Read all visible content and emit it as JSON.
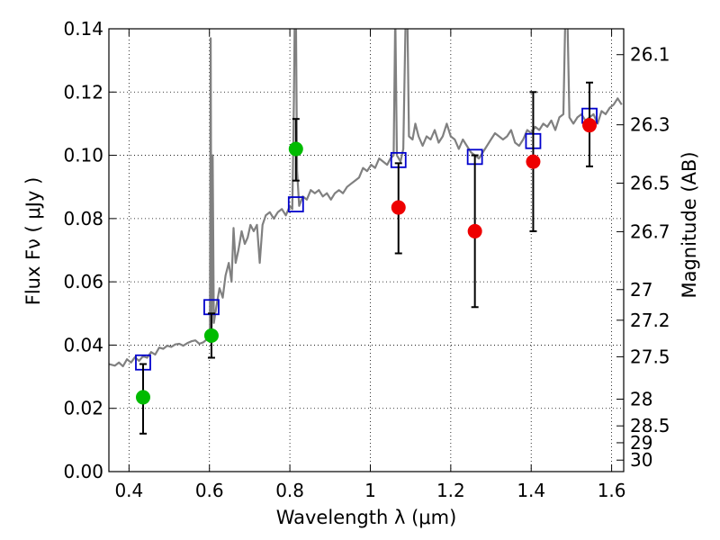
{
  "chart_data": {
    "type": "scatter",
    "title": "",
    "xlabel": "Wavelength  λ (μm)",
    "ylabel": "Flux  Fν  ( μJy )",
    "ylabel_right": "Magnitude (AB)",
    "xlim": [
      0.35,
      1.63
    ],
    "ylim": [
      0.0,
      0.14
    ],
    "grid": true,
    "x_ticks": [
      0.4,
      0.6,
      0.8,
      1.0,
      1.2,
      1.4,
      1.6
    ],
    "x_tick_labels": [
      "0.4",
      "0.6",
      "0.8",
      "1",
      "1.2",
      "1.4",
      "1.6"
    ],
    "y_ticks": [
      0.0,
      0.02,
      0.04,
      0.06,
      0.08,
      0.1,
      0.12,
      0.14
    ],
    "y_tick_labels": [
      "0.00",
      "0.02",
      "0.04",
      "0.06",
      "0.08",
      "0.10",
      "0.12",
      "0.14"
    ],
    "mag_ticks": [
      {
        "mag": 26.1,
        "label": "26.1"
      },
      {
        "mag": 26.3,
        "label": "26.3"
      },
      {
        "mag": 26.5,
        "label": "26.5"
      },
      {
        "mag": 26.7,
        "label": "26.7"
      },
      {
        "mag": 27.0,
        "label": "27"
      },
      {
        "mag": 27.2,
        "label": "27.2"
      },
      {
        "mag": 27.5,
        "label": "27.5"
      },
      {
        "mag": 28.0,
        "label": "28"
      },
      {
        "mag": 28.5,
        "label": "28.5"
      },
      {
        "mag": 29.0,
        "label": "29"
      },
      {
        "mag": 30.0,
        "label": "30"
      }
    ],
    "colors": {
      "spectrum": "#808080",
      "model_box": "#0000cc",
      "green": "#00bb00",
      "red": "#ee0000",
      "errorbar": "#000000"
    },
    "spectrum": [
      [
        0.35,
        0.034
      ],
      [
        0.365,
        0.0335
      ],
      [
        0.375,
        0.0345
      ],
      [
        0.385,
        0.0333
      ],
      [
        0.395,
        0.0355
      ],
      [
        0.405,
        0.0345
      ],
      [
        0.415,
        0.0362
      ],
      [
        0.425,
        0.035
      ],
      [
        0.435,
        0.0365
      ],
      [
        0.445,
        0.036
      ],
      [
        0.455,
        0.0378
      ],
      [
        0.465,
        0.037
      ],
      [
        0.475,
        0.0392
      ],
      [
        0.485,
        0.0388
      ],
      [
        0.495,
        0.0398
      ],
      [
        0.505,
        0.0394
      ],
      [
        0.515,
        0.0402
      ],
      [
        0.525,
        0.0404
      ],
      [
        0.535,
        0.0398
      ],
      [
        0.545,
        0.0406
      ],
      [
        0.555,
        0.0412
      ],
      [
        0.565,
        0.0415
      ],
      [
        0.575,
        0.0404
      ],
      [
        0.585,
        0.0409
      ],
      [
        0.595,
        0.042
      ],
      [
        0.601,
        0.041
      ],
      [
        0.603,
        0.137
      ],
      [
        0.605,
        0.043
      ],
      [
        0.608,
        0.1
      ],
      [
        0.611,
        0.047
      ],
      [
        0.617,
        0.052
      ],
      [
        0.625,
        0.058
      ],
      [
        0.633,
        0.055
      ],
      [
        0.64,
        0.062
      ],
      [
        0.648,
        0.066
      ],
      [
        0.655,
        0.06
      ],
      [
        0.66,
        0.077
      ],
      [
        0.665,
        0.066
      ],
      [
        0.672,
        0.07
      ],
      [
        0.68,
        0.076
      ],
      [
        0.688,
        0.072
      ],
      [
        0.695,
        0.074
      ],
      [
        0.702,
        0.078
      ],
      [
        0.71,
        0.076
      ],
      [
        0.718,
        0.078
      ],
      [
        0.725,
        0.066
      ],
      [
        0.732,
        0.078
      ],
      [
        0.74,
        0.081
      ],
      [
        0.75,
        0.082
      ],
      [
        0.76,
        0.08
      ],
      [
        0.77,
        0.082
      ],
      [
        0.78,
        0.083
      ],
      [
        0.79,
        0.081
      ],
      [
        0.8,
        0.084
      ],
      [
        0.806,
        0.083
      ],
      [
        0.81,
        0.118
      ],
      [
        0.812,
        0.145
      ],
      [
        0.815,
        0.145
      ],
      [
        0.818,
        0.095
      ],
      [
        0.823,
        0.084
      ],
      [
        0.832,
        0.087
      ],
      [
        0.842,
        0.086
      ],
      [
        0.852,
        0.089
      ],
      [
        0.862,
        0.088
      ],
      [
        0.872,
        0.089
      ],
      [
        0.882,
        0.087
      ],
      [
        0.892,
        0.088
      ],
      [
        0.902,
        0.086
      ],
      [
        0.912,
        0.088
      ],
      [
        0.922,
        0.089
      ],
      [
        0.932,
        0.088
      ],
      [
        0.942,
        0.09
      ],
      [
        0.952,
        0.091
      ],
      [
        0.962,
        0.092
      ],
      [
        0.972,
        0.093
      ],
      [
        0.982,
        0.096
      ],
      [
        0.992,
        0.095
      ],
      [
        1.002,
        0.097
      ],
      [
        1.012,
        0.096
      ],
      [
        1.022,
        0.099
      ],
      [
        1.032,
        0.098
      ],
      [
        1.042,
        0.097
      ],
      [
        1.05,
        0.099
      ],
      [
        1.058,
        0.1
      ],
      [
        1.062,
        0.145
      ],
      [
        1.066,
        0.1
      ],
      [
        1.075,
        0.098
      ],
      [
        1.082,
        0.102
      ],
      [
        1.088,
        0.145
      ],
      [
        1.092,
        0.145
      ],
      [
        1.096,
        0.106
      ],
      [
        1.105,
        0.105
      ],
      [
        1.112,
        0.11
      ],
      [
        1.12,
        0.106
      ],
      [
        1.13,
        0.103
      ],
      [
        1.14,
        0.106
      ],
      [
        1.15,
        0.105
      ],
      [
        1.16,
        0.108
      ],
      [
        1.17,
        0.104
      ],
      [
        1.18,
        0.106
      ],
      [
        1.19,
        0.11
      ],
      [
        1.2,
        0.106
      ],
      [
        1.21,
        0.105
      ],
      [
        1.22,
        0.102
      ],
      [
        1.23,
        0.105
      ],
      [
        1.24,
        0.103
      ],
      [
        1.25,
        0.101
      ],
      [
        1.26,
        0.1
      ],
      [
        1.27,
        0.099
      ],
      [
        1.28,
        0.101
      ],
      [
        1.29,
        0.103
      ],
      [
        1.3,
        0.105
      ],
      [
        1.31,
        0.107
      ],
      [
        1.32,
        0.106
      ],
      [
        1.33,
        0.105
      ],
      [
        1.34,
        0.106
      ],
      [
        1.35,
        0.108
      ],
      [
        1.36,
        0.104
      ],
      [
        1.37,
        0.103
      ],
      [
        1.38,
        0.105
      ],
      [
        1.39,
        0.108
      ],
      [
        1.4,
        0.107
      ],
      [
        1.41,
        0.109
      ],
      [
        1.42,
        0.108
      ],
      [
        1.43,
        0.11
      ],
      [
        1.44,
        0.109
      ],
      [
        1.45,
        0.111
      ],
      [
        1.46,
        0.108
      ],
      [
        1.47,
        0.112
      ],
      [
        1.48,
        0.113
      ],
      [
        1.485,
        0.145
      ],
      [
        1.49,
        0.145
      ],
      [
        1.495,
        0.112
      ],
      [
        1.505,
        0.11
      ],
      [
        1.515,
        0.112
      ],
      [
        1.525,
        0.113
      ],
      [
        1.535,
        0.111
      ],
      [
        1.545,
        0.112
      ],
      [
        1.555,
        0.113
      ],
      [
        1.565,
        0.11
      ],
      [
        1.575,
        0.114
      ],
      [
        1.585,
        0.113
      ],
      [
        1.595,
        0.115
      ],
      [
        1.605,
        0.116
      ],
      [
        1.615,
        0.118
      ],
      [
        1.625,
        0.116
      ]
    ],
    "series": [
      {
        "marker": "square-open",
        "color": "#0000cc",
        "x": [
          0.435,
          0.605,
          0.815,
          1.07,
          1.26,
          1.405,
          1.545
        ],
        "y": [
          0.0345,
          0.052,
          0.0845,
          0.0985,
          0.0995,
          0.1045,
          0.1125
        ]
      },
      {
        "marker": "circle",
        "color": "#00bb00",
        "x": [
          0.435,
          0.605,
          0.815
        ],
        "y": [
          0.0235,
          0.043,
          0.102
        ],
        "err_low": [
          0.0115,
          0.007,
          0.01
        ],
        "err_high": [
          0.0105,
          0.007,
          0.0095
        ]
      },
      {
        "marker": "circle",
        "color": "#ee0000",
        "x": [
          1.07,
          1.26,
          1.405,
          1.545
        ],
        "y": [
          0.0835,
          0.076,
          0.098,
          0.1095
        ],
        "err_low": [
          0.0145,
          0.024,
          0.022,
          0.013
        ],
        "err_high": [
          0.014,
          0.024,
          0.022,
          0.0135
        ]
      }
    ]
  }
}
